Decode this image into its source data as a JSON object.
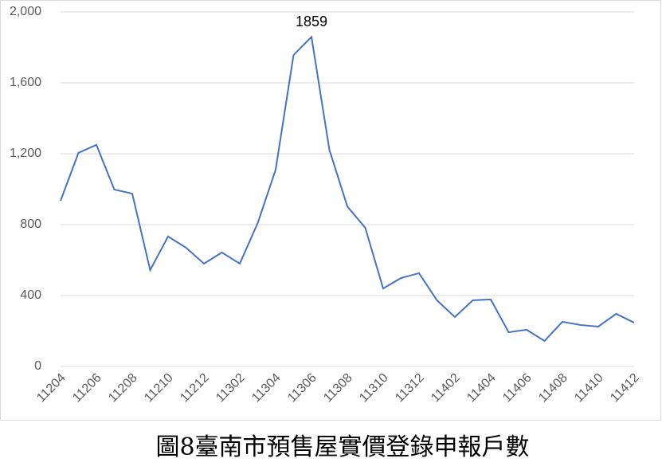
{
  "chart_data": {
    "type": "line",
    "title": "圖8臺南市預售屋實價登錄申報戶數",
    "categories": [
      "11204",
      null,
      "11206",
      null,
      "11208",
      null,
      "11210",
      null,
      "11212",
      null,
      "11302",
      null,
      "11304",
      null,
      "11306",
      null,
      "11308",
      null,
      "11310",
      null,
      "11312",
      null,
      "11402",
      null,
      "11404",
      null,
      "11406",
      null,
      "11408",
      null,
      "11410",
      null,
      "11412"
    ],
    "values": [
      935,
      1205,
      1250,
      998,
      975,
      544,
      733,
      670,
      580,
      643,
      580,
      809,
      1110,
      1757,
      1859,
      1222,
      903,
      782,
      440,
      499,
      526,
      373,
      279,
      373,
      378,
      193,
      207,
      144,
      252,
      234,
      225,
      297,
      247
    ],
    "color": "#4472c4",
    "labeled_point": 14,
    "ylim": [
      0,
      2000
    ],
    "yticks": [
      0,
      400,
      800,
      {
        "value": 1200,
        "label": "1,200"
      },
      {
        "value": 1600,
        "label": "1,600"
      },
      {
        "value": 2000,
        "label": "2,000"
      }
    ],
    "grid": true
  }
}
